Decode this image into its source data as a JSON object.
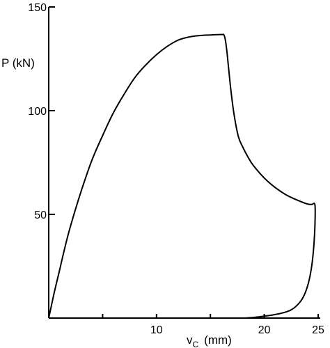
{
  "chart_data": {
    "type": "line",
    "title": "",
    "xlabel": "v",
    "xlabel_subscript": "C",
    "xlabel_unit": "(mm)",
    "ylabel": "P (kN)",
    "xlim": [
      0,
      25
    ],
    "ylim": [
      0,
      150
    ],
    "x_ticks": [
      5,
      10,
      15,
      20,
      25
    ],
    "x_tick_labels": [
      "",
      "10",
      "",
      "20",
      "25"
    ],
    "y_ticks": [
      50,
      100,
      150
    ],
    "y_tick_labels": [
      "50",
      "100",
      "150"
    ],
    "grid": false,
    "legend": "none",
    "series": [
      {
        "color": "#000000",
        "x": [
          0,
          0.5,
          1.0,
          1.5,
          2.0,
          3.0,
          4.0,
          5.0,
          6.0,
          7.0,
          8.0,
          9.0,
          10.0,
          11.0,
          12.0,
          13.0,
          14.0,
          15.0,
          16.0,
          16.3,
          16.5,
          16.7,
          16.9,
          17.2,
          17.6,
          18.0,
          18.5,
          19.0,
          20.0,
          21.0,
          22.0,
          23.0,
          24.0,
          24.4,
          24.7,
          24.7,
          24.6,
          24.4,
          24.1,
          23.7,
          23.2,
          22.5,
          21.7,
          20.8,
          19.8,
          19.0,
          18.2
        ],
        "y": [
          0,
          12,
          23,
          34,
          44,
          61,
          76,
          88,
          99,
          108,
          116,
          122,
          127,
          131,
          134,
          135.5,
          136.2,
          136.5,
          136.7,
          136.0,
          130.0,
          120.0,
          110.0,
          98.0,
          87.5,
          82.5,
          77.5,
          73.5,
          67.5,
          63.0,
          59.5,
          57.0,
          55.0,
          54.8,
          54.5,
          45.0,
          35.0,
          25.0,
          17.0,
          11.0,
          7.0,
          4.0,
          2.5,
          1.5,
          0.8,
          0.3,
          0
        ]
      }
    ]
  }
}
